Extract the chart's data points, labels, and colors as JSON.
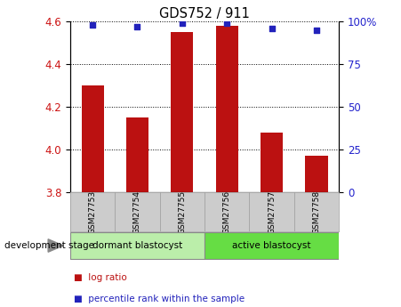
{
  "title": "GDS752 / 911",
  "samples": [
    "GSM27753",
    "GSM27754",
    "GSM27755",
    "GSM27756",
    "GSM27757",
    "GSM27758"
  ],
  "log_ratio": [
    4.3,
    4.15,
    4.55,
    4.58,
    4.08,
    3.97
  ],
  "log_ratio_base": 3.8,
  "percentile_rank": [
    98,
    97,
    99,
    99,
    96,
    95
  ],
  "ylim_left": [
    3.8,
    4.6
  ],
  "ylim_right": [
    0,
    100
  ],
  "yticks_left": [
    3.8,
    4.0,
    4.2,
    4.4,
    4.6
  ],
  "yticks_right": [
    0,
    25,
    50,
    75,
    100
  ],
  "bar_color": "#bb1111",
  "dot_color": "#2222bb",
  "groups": [
    {
      "label": "dormant blastocyst",
      "samples": [
        0,
        1,
        2
      ],
      "color": "#bbeeaa"
    },
    {
      "label": "active blastocyst",
      "samples": [
        3,
        4,
        5
      ],
      "color": "#66dd44"
    }
  ],
  "group_label": "development stage",
  "legend": [
    {
      "label": "log ratio",
      "color": "#bb1111"
    },
    {
      "label": "percentile rank within the sample",
      "color": "#2222bb"
    }
  ],
  "tick_label_color_left": "#cc1111",
  "tick_label_color_right": "#2222cc",
  "bg_color_label": "#cccccc",
  "bar_width": 0.5
}
